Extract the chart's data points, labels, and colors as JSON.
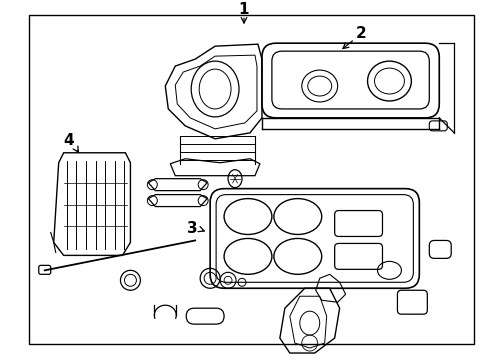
{
  "background_color": "#ffffff",
  "border_color": "#000000",
  "line_color": "#000000",
  "text_color": "#000000",
  "label_1": "1",
  "label_2": "2",
  "label_3": "3",
  "label_4": "4",
  "figsize": [
    4.89,
    3.6
  ],
  "dpi": 100
}
